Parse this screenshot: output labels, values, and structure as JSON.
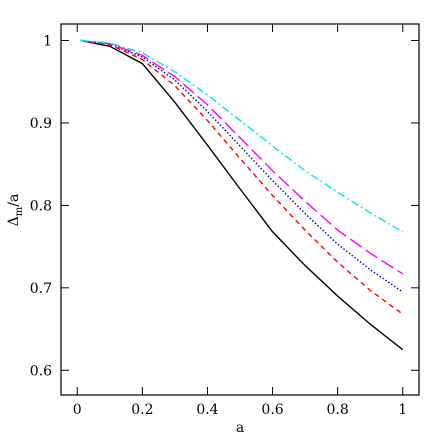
{
  "chart_data": {
    "type": "line",
    "xlabel": "a",
    "ylabel": [
      "Δ",
      "m",
      "/a"
    ],
    "x": [
      0.01,
      0.1,
      0.2,
      0.3,
      0.4,
      0.5,
      0.6,
      0.7,
      0.8,
      0.9,
      1.0
    ],
    "series": [
      {
        "color": "#000000",
        "dash": "none",
        "values": [
          1.0,
          0.993,
          0.972,
          0.925,
          0.873,
          0.82,
          0.768,
          0.727,
          0.69,
          0.656,
          0.625
        ]
      },
      {
        "color": "#ff0000",
        "dash": "5 4",
        "values": [
          1.0,
          0.995,
          0.977,
          0.945,
          0.903,
          0.857,
          0.812,
          0.77,
          0.731,
          0.697,
          0.668
        ]
      },
      {
        "color": "#0000c0",
        "dash": "1.5 2",
        "values": [
          1.0,
          0.996,
          0.98,
          0.952,
          0.914,
          0.872,
          0.83,
          0.79,
          0.753,
          0.722,
          0.695
        ]
      },
      {
        "color": "#ff00ff",
        "dash": "14 5",
        "values": [
          1.0,
          0.996,
          0.982,
          0.956,
          0.922,
          0.882,
          0.842,
          0.805,
          0.77,
          0.742,
          0.717
        ]
      },
      {
        "color": "#00e5ee",
        "dash": "8 3 2 3",
        "values": [
          1.0,
          0.997,
          0.985,
          0.962,
          0.934,
          0.903,
          0.872,
          0.842,
          0.816,
          0.791,
          0.768
        ]
      }
    ],
    "xlim": [
      -0.05,
      1.05
    ],
    "ylim": [
      0.57,
      1.02
    ],
    "xticks": [
      0,
      0.2,
      0.4,
      0.6,
      0.8,
      1
    ],
    "yticks": [
      0.6,
      0.7,
      0.8,
      0.9,
      1
    ]
  }
}
